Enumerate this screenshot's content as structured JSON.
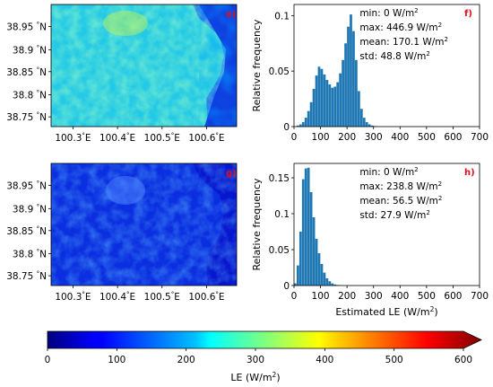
{
  "chart_data": [
    {
      "id": "e",
      "type": "heatmap",
      "panel_label": "e)",
      "x_ticks": [
        "100.3$^\\circ$E",
        "100.4$^\\circ$E",
        "100.5$^\\circ$E",
        "100.6$^\\circ$E"
      ],
      "x_tick_labels": [
        "100.3",
        "100.4",
        "100.5",
        "100.6"
      ],
      "y_tick_labels": [
        "38.95",
        "38.9",
        "38.85",
        "38.8",
        "38.75"
      ],
      "colormap": "jet",
      "vmin": 0,
      "vmax": 600,
      "mean_value": 170.1
    },
    {
      "id": "f",
      "type": "bar",
      "panel_label": "f)",
      "ylabel": "Relative frequency",
      "xlim": [
        0,
        700
      ],
      "ylim": [
        0,
        0.11
      ],
      "x_ticks": [
        "0",
        "100",
        "200",
        "300",
        "400",
        "500",
        "600",
        "700"
      ],
      "y_ticks": [
        "0",
        "0.05",
        "0.1"
      ],
      "bin_width": 10,
      "bin_starts": [
        0,
        10,
        20,
        30,
        40,
        50,
        60,
        70,
        80,
        90,
        100,
        110,
        120,
        130,
        140,
        150,
        160,
        170,
        180,
        190,
        200,
        210,
        220,
        230,
        240,
        250,
        260,
        270,
        280,
        290,
        300,
        310,
        320
      ],
      "values": [
        0,
        0.001,
        0.002,
        0.004,
        0.008,
        0.014,
        0.022,
        0.034,
        0.046,
        0.054,
        0.052,
        0.047,
        0.042,
        0.038,
        0.035,
        0.036,
        0.04,
        0.048,
        0.06,
        0.075,
        0.09,
        0.101,
        0.086,
        0.06,
        0.032,
        0.016,
        0.008,
        0.004,
        0.002,
        0.001,
        0.0005,
        0.0002,
        0.0001
      ],
      "color": "#1f77b4",
      "stats": {
        "min": "min: 0 W/m",
        "max": "max: 446.9 W/m",
        "mean": "mean: 170.1 W/m",
        "std": "std: 48.8 W/m",
        "sup": "2"
      }
    },
    {
      "id": "g",
      "type": "heatmap",
      "panel_label": "g)",
      "x_tick_labels": [
        "100.3",
        "100.4",
        "100.5",
        "100.6"
      ],
      "y_tick_labels": [
        "38.95",
        "38.9",
        "38.85",
        "38.8",
        "38.75"
      ],
      "colormap": "jet",
      "vmin": 0,
      "vmax": 600,
      "mean_value": 56.5
    },
    {
      "id": "h",
      "type": "bar",
      "panel_label": "h)",
      "ylabel": "Relative frequency",
      "xlabel": "Estimated LE (W/m",
      "xlabel_sup": "2",
      "xlabel_end": ")",
      "xlim": [
        0,
        700
      ],
      "ylim": [
        0,
        0.17
      ],
      "x_ticks": [
        "0",
        "100",
        "200",
        "300",
        "400",
        "500",
        "600",
        "700"
      ],
      "y_ticks": [
        "0",
        "0.05",
        "0.1",
        "0.15"
      ],
      "bin_width": 10,
      "bin_starts": [
        0,
        10,
        20,
        30,
        40,
        50,
        60,
        70,
        80,
        90,
        100,
        110,
        120,
        130,
        140,
        150,
        160,
        170,
        180
      ],
      "values": [
        0.003,
        0.028,
        0.075,
        0.148,
        0.163,
        0.164,
        0.13,
        0.095,
        0.065,
        0.045,
        0.03,
        0.018,
        0.01,
        0.006,
        0.003,
        0.0015,
        0.0008,
        0.0004,
        0.0002
      ],
      "color": "#1f77b4",
      "stats": {
        "min": "min: 0 W/m",
        "max": "max: 238.8 W/m",
        "mean": "mean: 56.5 W/m",
        "std": "std: 27.9 W/m",
        "sup": "2"
      }
    },
    {
      "id": "colorbar",
      "type": "heatmap",
      "colormap": "jet",
      "vmin": 0,
      "vmax": 600,
      "ticks": [
        "0",
        "100",
        "200",
        "300",
        "400",
        "500",
        "600"
      ],
      "label": "LE (W/m",
      "label_sup": "2",
      "label_end": ")"
    }
  ],
  "map_tick_suffix": "$^\\circ$E",
  "lat_tick_suffix": "$^\\circ$N"
}
